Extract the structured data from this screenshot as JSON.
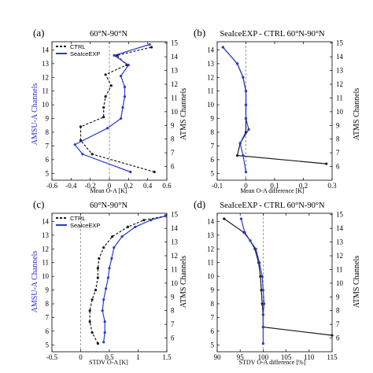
{
  "colors": {
    "ctrl": "#1a1a1a",
    "exp": "#2a3bc8",
    "left_label": "#2b2bd6",
    "zero_line": "#888888"
  },
  "chart_data": [
    {
      "panel_label": "(a)",
      "type": "line",
      "title": "60°N-90°N",
      "xlabel": "Mean O-A [K]",
      "ylabel_left": "AMSU-A Channels",
      "ylabel_right": "ATMS Channels",
      "xlim": [
        -0.6,
        0.6
      ],
      "xticks": [
        -0.6,
        -0.4,
        -0.2,
        0,
        0.2,
        0.4,
        0.6
      ],
      "xtick_labels": [
        "-0.6",
        "-0.4",
        "-0.2",
        "0",
        "0.2",
        "0.4",
        "0.6"
      ],
      "ylim": [
        4.5,
        14.6
      ],
      "left_ticks": [
        5,
        6,
        7,
        8,
        9,
        10,
        11,
        12,
        13,
        14
      ],
      "right_ticks": [
        6,
        7,
        8,
        9,
        10,
        11,
        12,
        13,
        14,
        15
      ],
      "ref_x": 0,
      "legend": [
        "CTRL",
        "SeaIceEXP"
      ],
      "legend_position": "top-left",
      "series": [
        {
          "name": "CTRL",
          "style": "dashed",
          "points": [
            [
              0.47,
              5.1
            ],
            [
              -0.18,
              6.4
            ],
            [
              -0.3,
              7.4
            ],
            [
              -0.3,
              8.4
            ],
            [
              -0.06,
              9.1
            ],
            [
              -0.06,
              9.8
            ],
            [
              -0.04,
              10.6
            ],
            [
              0.02,
              11.4
            ],
            [
              -0.04,
              12.2
            ],
            [
              0.18,
              12.9
            ],
            [
              0.08,
              13.6
            ],
            [
              0.44,
              14.2
            ]
          ]
        },
        {
          "name": "SeaIceEXP",
          "style": "solid",
          "points": [
            [
              0.22,
              5.1
            ],
            [
              -0.28,
              6.4
            ],
            [
              -0.36,
              7.1
            ],
            [
              -0.02,
              8.3
            ],
            [
              0.12,
              9.0
            ],
            [
              0.14,
              9.8
            ],
            [
              0.16,
              10.6
            ],
            [
              0.16,
              11.3
            ],
            [
              0.12,
              12.1
            ],
            [
              0.2,
              12.9
            ],
            [
              0.05,
              13.6
            ],
            [
              0.42,
              14.4
            ]
          ]
        }
      ]
    },
    {
      "panel_label": "(b)",
      "type": "line",
      "title": "SeaIceEXP - CTRL  60°N-90°N",
      "xlabel": "Mean O-A difference [K]",
      "ylabel_left": "",
      "ylabel_right": "ATMS Channels",
      "xlim": [
        -0.1,
        0.3
      ],
      "xticks": [
        -0.1,
        0,
        0.1,
        0.2,
        0.3
      ],
      "xtick_labels": [
        "-0.1",
        "0",
        "0.1",
        "0.2",
        "0.3"
      ],
      "ylim": [
        4.5,
        14.6
      ],
      "left_ticks": [
        5,
        6,
        7,
        8,
        9,
        10,
        11,
        12,
        13,
        14
      ],
      "right_ticks": [
        6,
        7,
        8,
        9,
        10,
        11,
        12,
        13,
        14,
        15
      ],
      "ref_x": 0,
      "series": [
        {
          "name": "",
          "style": "solid",
          "color_key": "ctrl",
          "points": [
            [
              0.28,
              5.7
            ],
            [
              -0.03,
              6.3
            ],
            [
              -0.02,
              7.2
            ],
            [
              0.0,
              8.0
            ],
            [
              0.0,
              9.0
            ],
            [
              0.0,
              10.0
            ],
            [
              0.0,
              11.0
            ],
            [
              -0.01,
              12.0
            ],
            [
              -0.03,
              13.0
            ],
            [
              -0.08,
              14.2
            ]
          ]
        },
        {
          "name": "",
          "style": "solid",
          "color_key": "exp",
          "points": [
            [
              0.0,
              5.1
            ],
            [
              -0.01,
              6.3
            ],
            [
              -0.02,
              7.2
            ],
            [
              0.01,
              8.2
            ],
            [
              0.0,
              9.0
            ],
            [
              0.0,
              10.0
            ],
            [
              0.0,
              11.0
            ],
            [
              -0.01,
              12.0
            ],
            [
              -0.03,
              13.0
            ],
            [
              -0.08,
              14.2
            ]
          ]
        }
      ]
    },
    {
      "panel_label": "(c)",
      "type": "line",
      "title": "60°N-90°N",
      "xlabel": "STDV O-A [K]",
      "ylabel_left": "AMSU-A Channels",
      "ylabel_right": "ATMS Channels",
      "xlim": [
        -0.5,
        1.5
      ],
      "xticks": [
        -0.5,
        0,
        0.5,
        1,
        1.5
      ],
      "xtick_labels": [
        "-0.5",
        "0",
        "0.5",
        "1",
        "1.5"
      ],
      "ylim": [
        4.5,
        14.6
      ],
      "left_ticks": [
        5,
        6,
        7,
        8,
        9,
        10,
        11,
        12,
        13,
        14
      ],
      "right_ticks": [
        6,
        7,
        8,
        9,
        10,
        11,
        12,
        13,
        14,
        15
      ],
      "ref_x": 0,
      "legend": [
        "CTRL",
        "SeaIceEXP"
      ],
      "legend_position": "top-left",
      "series": [
        {
          "name": "CTRL",
          "style": "dashed",
          "points": [
            [
              0.3,
              5.1
            ],
            [
              0.2,
              5.9
            ],
            [
              0.16,
              6.7
            ],
            [
              0.16,
              7.5
            ],
            [
              0.2,
              8.3
            ],
            [
              0.26,
              9.0
            ],
            [
              0.3,
              9.9
            ],
            [
              0.3,
              10.6
            ],
            [
              0.32,
              11.3
            ],
            [
              0.4,
              12.1
            ],
            [
              0.55,
              12.9
            ],
            [
              0.82,
              13.6
            ],
            [
              1.1,
              14.1
            ],
            [
              1.48,
              14.4
            ]
          ]
        },
        {
          "name": "SeaIceEXP",
          "style": "solid",
          "points": [
            [
              0.4,
              5.2
            ],
            [
              0.42,
              5.9
            ],
            [
              0.42,
              6.7
            ],
            [
              0.38,
              7.5
            ],
            [
              0.4,
              8.3
            ],
            [
              0.44,
              9.1
            ],
            [
              0.48,
              9.9
            ],
            [
              0.5,
              10.6
            ],
            [
              0.54,
              11.3
            ],
            [
              0.58,
              12.1
            ],
            [
              0.72,
              12.9
            ],
            [
              0.95,
              13.6
            ],
            [
              1.22,
              14.1
            ],
            [
              1.48,
              14.4
            ]
          ]
        }
      ]
    },
    {
      "panel_label": "(d)",
      "type": "line",
      "title": "SeaIceEXP - CTRL  60°N-90°N",
      "xlabel": "STDV O-A difference [%]",
      "ylabel_left": "",
      "ylabel_right": "ATMS Channels",
      "xlim": [
        90,
        115
      ],
      "xticks": [
        90,
        95,
        100,
        105,
        110,
        115
      ],
      "xtick_labels": [
        "90",
        "95",
        "100",
        "105",
        "110",
        "115"
      ],
      "ylim": [
        4.5,
        14.6
      ],
      "left_ticks": [
        5,
        6,
        7,
        8,
        9,
        10,
        11,
        12,
        13,
        14
      ],
      "right_ticks": [
        6,
        7,
        8,
        9,
        10,
        11,
        12,
        13,
        14,
        15
      ],
      "ref_x": 100,
      "series": [
        {
          "name": "",
          "style": "solid",
          "color_key": "ctrl",
          "points": [
            [
              115,
              5.7
            ],
            [
              100,
              6.3
            ],
            [
              100,
              7.2
            ],
            [
              99.8,
              8.0
            ],
            [
              99.6,
              9.0
            ],
            [
              99.4,
              10.0
            ],
            [
              99.0,
              11.0
            ],
            [
              98.2,
              12.0
            ],
            [
              97.2,
              12.6
            ],
            [
              95.8,
              13.2
            ],
            [
              91.5,
              14.2
            ]
          ]
        },
        {
          "name": "",
          "style": "solid",
          "color_key": "exp",
          "points": [
            [
              100,
              5.1
            ],
            [
              100,
              6.3
            ],
            [
              100,
              7.2
            ],
            [
              100.2,
              8.0
            ],
            [
              100.0,
              9.0
            ],
            [
              99.8,
              10.0
            ],
            [
              99.2,
              11.0
            ],
            [
              98.4,
              12.0
            ],
            [
              97.2,
              12.6
            ],
            [
              96.0,
              13.2
            ],
            [
              95.2,
              14.2
            ]
          ]
        }
      ]
    }
  ]
}
